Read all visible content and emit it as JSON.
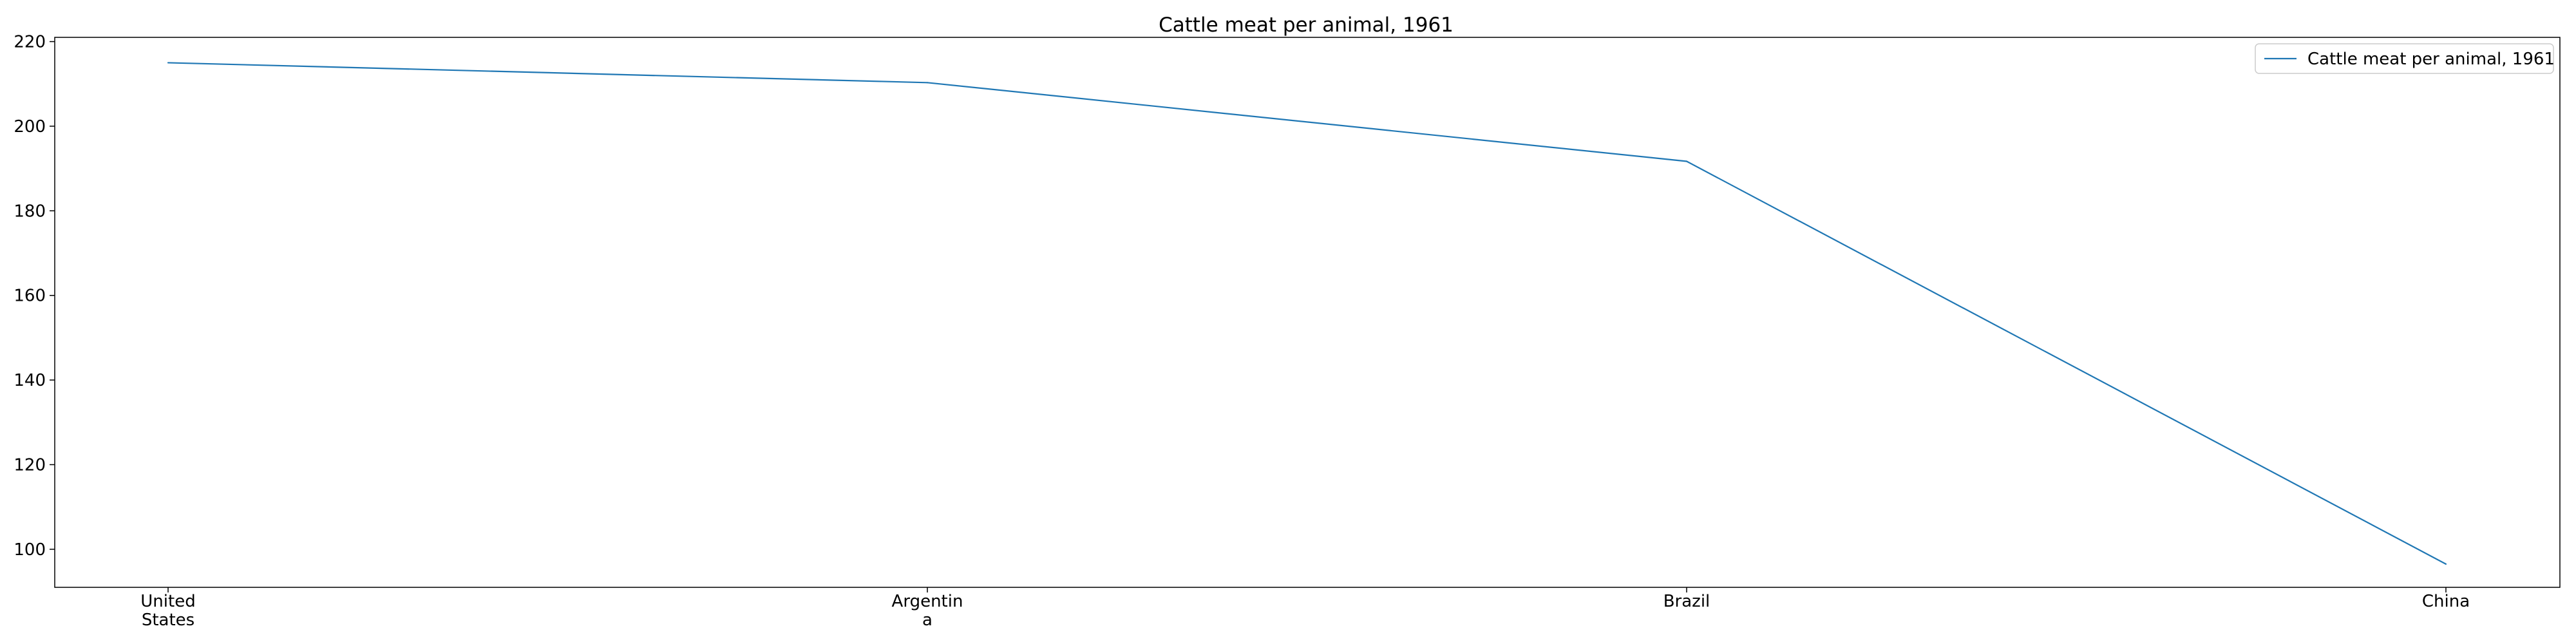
{
  "chart_data": {
    "type": "line",
    "title": "Cattle meat per animal, 1961",
    "xlabel": "",
    "ylabel": "",
    "categories": [
      "United\nStates",
      "Argentin\na",
      "Brazil",
      "China"
    ],
    "series": [
      {
        "name": "Cattle meat per animal, 1961",
        "values": [
          215.0,
          210.3,
          191.7,
          96.5
        ],
        "color": "#1f77b4"
      }
    ],
    "ylim": [
      91,
      221
    ],
    "yticks": [
      100,
      120,
      140,
      160,
      180,
      200,
      220
    ],
    "grid": false,
    "legend_position": "top-right"
  }
}
